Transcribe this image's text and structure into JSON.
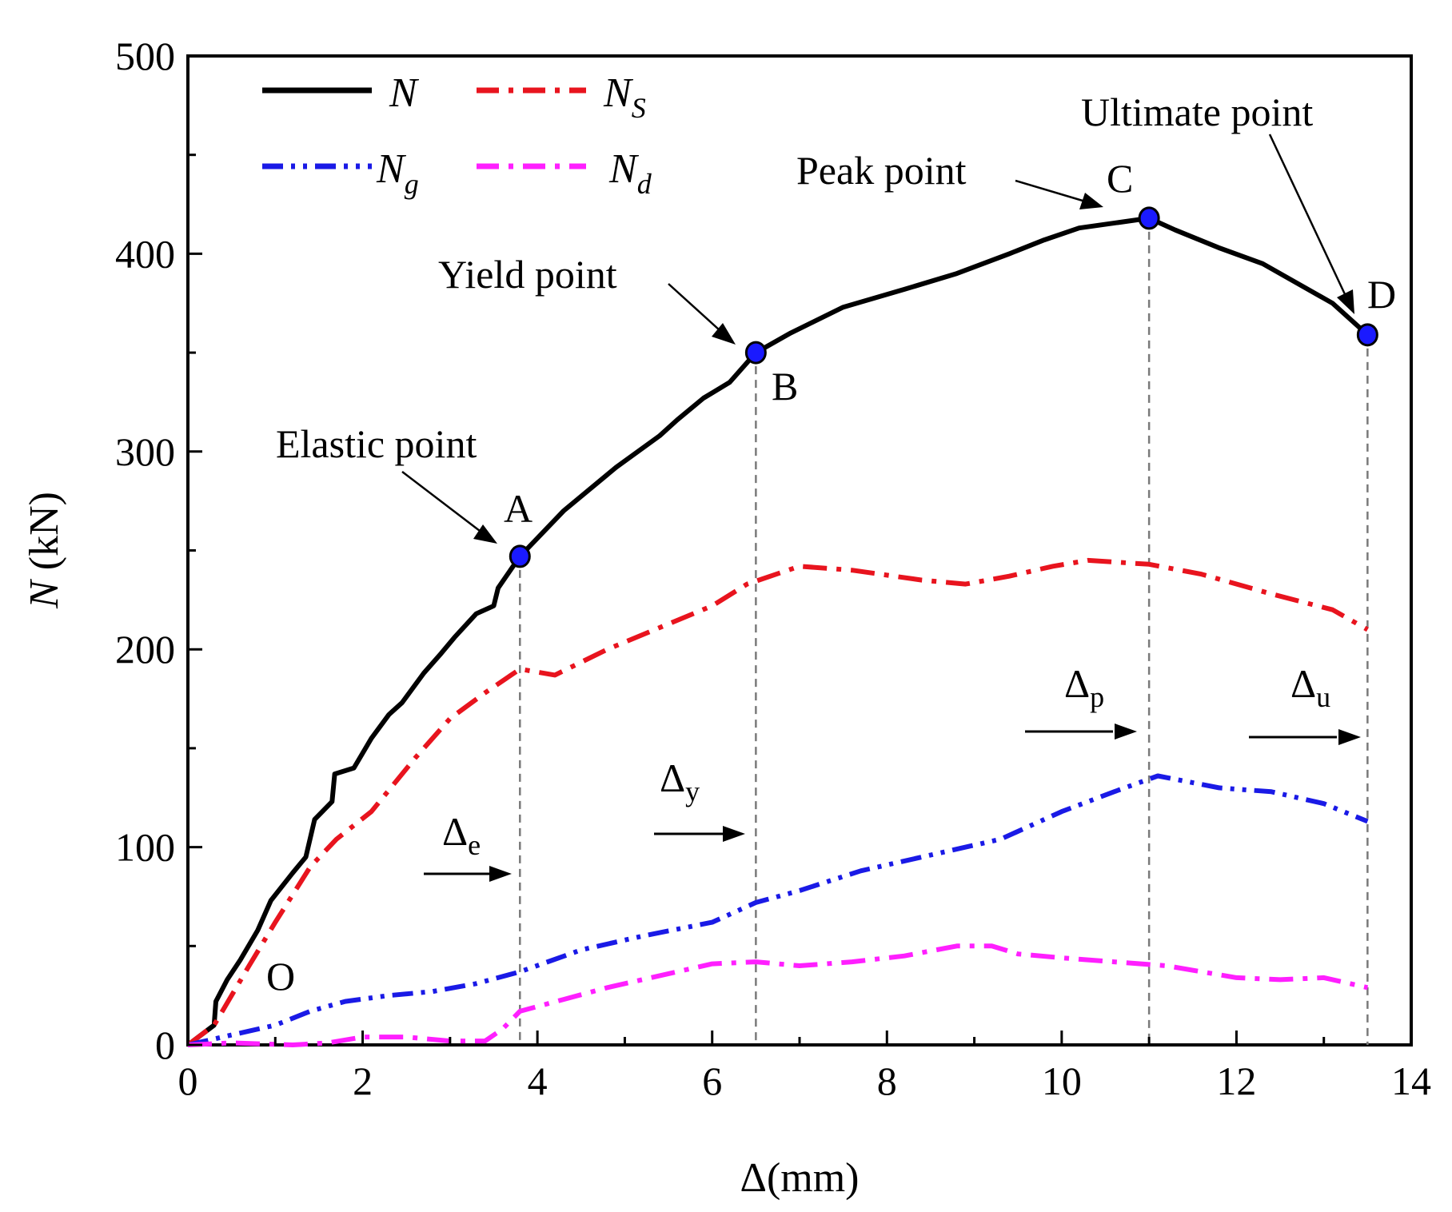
{
  "chart_data": {
    "type": "line",
    "xlabel": "Δ(mm)",
    "ylabel_var": "N",
    "ylabel_unit": " (kN)",
    "xlim": [
      0,
      14
    ],
    "ylim": [
      0,
      500
    ],
    "x_ticks": [
      "0",
      "2",
      "4",
      "6",
      "8",
      "10",
      "12",
      "14"
    ],
    "y_ticks": [
      "0",
      "100",
      "200",
      "300",
      "400",
      "500"
    ],
    "grid": false,
    "legend_position": "top-left",
    "series": [
      {
        "name": "N",
        "sub": "",
        "color": "#000000",
        "dash": "solid",
        "points": [
          [
            0,
            0
          ],
          [
            0.3,
            10
          ],
          [
            0.32,
            22
          ],
          [
            0.45,
            33
          ],
          [
            0.6,
            43
          ],
          [
            0.8,
            58
          ],
          [
            0.95,
            73
          ],
          [
            1.2,
            87
          ],
          [
            1.35,
            95
          ],
          [
            1.45,
            114
          ],
          [
            1.65,
            123
          ],
          [
            1.68,
            137
          ],
          [
            1.9,
            140
          ],
          [
            2.1,
            155
          ],
          [
            2.3,
            167
          ],
          [
            2.45,
            173
          ],
          [
            2.7,
            188
          ],
          [
            2.9,
            198
          ],
          [
            3.05,
            206
          ],
          [
            3.3,
            218
          ],
          [
            3.5,
            222
          ],
          [
            3.55,
            231
          ],
          [
            3.8,
            247
          ],
          [
            4.3,
            270
          ],
          [
            4.9,
            292
          ],
          [
            5.4,
            308
          ],
          [
            5.6,
            316
          ],
          [
            5.9,
            327
          ],
          [
            6.2,
            335
          ],
          [
            6.4,
            345
          ],
          [
            6.5,
            350
          ],
          [
            6.9,
            360
          ],
          [
            7.5,
            373
          ],
          [
            8.2,
            382
          ],
          [
            8.8,
            390
          ],
          [
            9.4,
            400
          ],
          [
            9.8,
            407
          ],
          [
            10.2,
            413
          ],
          [
            11.0,
            418
          ],
          [
            11.3,
            412
          ],
          [
            11.8,
            403
          ],
          [
            12.3,
            395
          ],
          [
            13.1,
            375
          ],
          [
            13.5,
            359
          ]
        ]
      },
      {
        "name": "N",
        "sub": "S",
        "color": "#e8141e",
        "dash": "dashdot",
        "points": [
          [
            0,
            0
          ],
          [
            0.3,
            10
          ],
          [
            0.7,
            40
          ],
          [
            1.0,
            62
          ],
          [
            1.4,
            90
          ],
          [
            1.7,
            104
          ],
          [
            2.1,
            118
          ],
          [
            2.6,
            145
          ],
          [
            3.0,
            165
          ],
          [
            3.4,
            178
          ],
          [
            3.8,
            190
          ],
          [
            4.2,
            187
          ],
          [
            4.8,
            200
          ],
          [
            5.4,
            211
          ],
          [
            6.0,
            222
          ],
          [
            6.4,
            233
          ],
          [
            7.0,
            242
          ],
          [
            7.6,
            240
          ],
          [
            8.4,
            235
          ],
          [
            8.9,
            233
          ],
          [
            9.4,
            237
          ],
          [
            9.9,
            242
          ],
          [
            10.3,
            245
          ],
          [
            11.0,
            243
          ],
          [
            11.6,
            238
          ],
          [
            12.4,
            228
          ],
          [
            13.1,
            220
          ],
          [
            13.5,
            210
          ]
        ]
      },
      {
        "name": "N",
        "sub": "g",
        "color": "#1a1ae6",
        "dash": "dashdotdot",
        "points": [
          [
            0,
            0
          ],
          [
            0.5,
            5
          ],
          [
            1.0,
            10
          ],
          [
            1.4,
            17
          ],
          [
            1.8,
            22
          ],
          [
            2.3,
            25
          ],
          [
            2.8,
            27
          ],
          [
            3.3,
            31
          ],
          [
            3.8,
            37
          ],
          [
            4.5,
            48
          ],
          [
            5.2,
            55
          ],
          [
            6.0,
            62
          ],
          [
            6.5,
            72
          ],
          [
            7.0,
            78
          ],
          [
            7.7,
            88
          ],
          [
            8.4,
            95
          ],
          [
            9.3,
            104
          ],
          [
            10.0,
            118
          ],
          [
            10.6,
            128
          ],
          [
            11.1,
            136
          ],
          [
            11.8,
            130
          ],
          [
            12.4,
            128
          ],
          [
            13.0,
            122
          ],
          [
            13.5,
            113
          ]
        ]
      },
      {
        "name": "N",
        "sub": "d",
        "color": "#ff1fff",
        "dash": "dashdot",
        "points": [
          [
            0,
            0
          ],
          [
            0.5,
            1
          ],
          [
            1.2,
            0
          ],
          [
            1.6,
            1
          ],
          [
            2.0,
            4
          ],
          [
            2.5,
            4
          ],
          [
            3.0,
            2
          ],
          [
            3.4,
            2
          ],
          [
            3.6,
            8
          ],
          [
            3.8,
            17
          ],
          [
            4.3,
            23
          ],
          [
            4.8,
            29
          ],
          [
            5.4,
            35
          ],
          [
            6.0,
            41
          ],
          [
            6.5,
            42
          ],
          [
            7.0,
            40
          ],
          [
            7.6,
            42
          ],
          [
            8.2,
            45
          ],
          [
            8.8,
            50
          ],
          [
            9.2,
            50
          ],
          [
            9.5,
            46
          ],
          [
            10.0,
            44
          ],
          [
            10.6,
            42
          ],
          [
            11.2,
            40
          ],
          [
            12.0,
            34
          ],
          [
            12.5,
            33
          ],
          [
            13.0,
            34
          ],
          [
            13.4,
            30
          ],
          [
            13.5,
            29
          ]
        ]
      }
    ],
    "markers": [
      {
        "label": "A",
        "x": 3.8,
        "y": 247
      },
      {
        "label": "B",
        "x": 6.5,
        "y": 350
      },
      {
        "label": "C",
        "x": 11.0,
        "y": 418
      },
      {
        "label": "D",
        "x": 13.5,
        "y": 359
      }
    ],
    "annotations": {
      "origin": "O",
      "elastic": "Elastic point",
      "yield": "Yield point",
      "peak": "Peak point",
      "ultimate": "Ultimate point",
      "delta_symbol": "Δ",
      "delta_e_sub": "e",
      "delta_y_sub": "y",
      "delta_p_sub": "p",
      "delta_u_sub": "u"
    }
  }
}
